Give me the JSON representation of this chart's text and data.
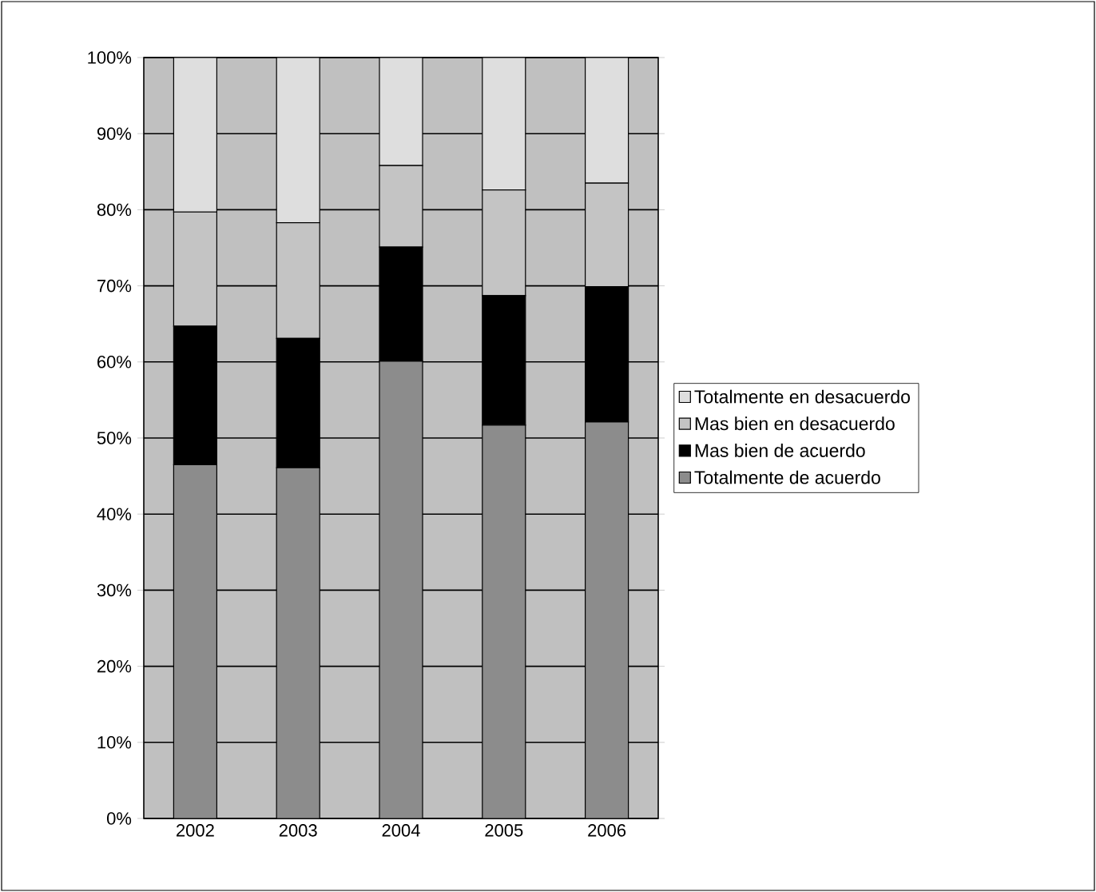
{
  "chart_data": {
    "type": "bar",
    "stacked": true,
    "categories": [
      "2002",
      "2003",
      "2004",
      "2005",
      "2006"
    ],
    "series": [
      {
        "name": "Totalmente de acuerdo",
        "color": "#8c8c8c",
        "values": [
          46.5,
          46.1,
          60.1,
          51.7,
          52.1
        ]
      },
      {
        "name": "Mas bien de acuerdo",
        "color": "#000000",
        "values": [
          18.2,
          17.0,
          15.0,
          17.0,
          17.8
        ]
      },
      {
        "name": "Mas bien en desacuerdo",
        "color": "#c4c4c4",
        "values": [
          15.0,
          15.2,
          10.7,
          13.9,
          13.6
        ]
      },
      {
        "name": "Totalmente en desacuerdo",
        "color": "#dedede",
        "values": [
          20.3,
          21.7,
          14.2,
          17.4,
          16.5
        ]
      }
    ],
    "ylim": [
      0,
      100
    ],
    "yticks": [
      {
        "value": 0,
        "label": "0%"
      },
      {
        "value": 10,
        "label": "10%"
      },
      {
        "value": 20,
        "label": "20%"
      },
      {
        "value": 30,
        "label": "30%"
      },
      {
        "value": 40,
        "label": "40%"
      },
      {
        "value": 50,
        "label": "50%"
      },
      {
        "value": 60,
        "label": "60%"
      },
      {
        "value": 70,
        "label": "70%"
      },
      {
        "value": 80,
        "label": "80%"
      },
      {
        "value": 90,
        "label": "90%"
      },
      {
        "value": 100,
        "label": "100%"
      }
    ],
    "grid": "y",
    "legend": "right"
  }
}
